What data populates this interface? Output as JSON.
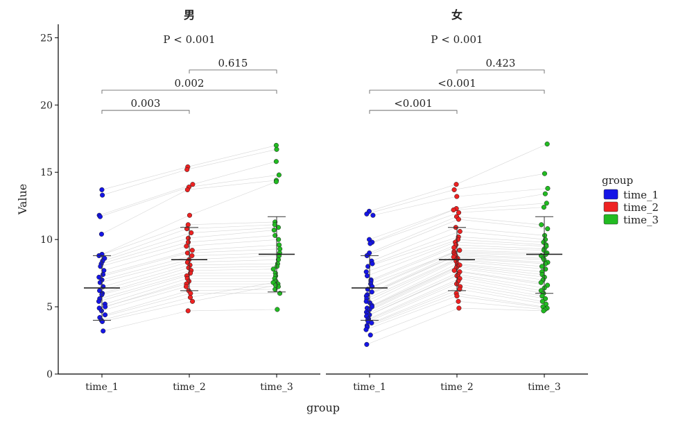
{
  "chart_data": {
    "type": "scatter",
    "subtype": "paired dot plot with mean ± sd, faceted",
    "xlabel": "group",
    "ylabel": "Value",
    "ylim": [
      0,
      26
    ],
    "yticks": [
      0,
      5,
      10,
      15,
      20,
      25
    ],
    "categories": [
      "time_1",
      "time_2",
      "time_3"
    ],
    "legend": {
      "title": "group",
      "position": "right",
      "entries": [
        {
          "label": "time_1",
          "color": "#1515e6"
        },
        {
          "label": "time_2",
          "color": "#ee2222"
        },
        {
          "label": "time_3",
          "color": "#22bb22"
        }
      ]
    },
    "facets": [
      {
        "title": "男",
        "overall_p": "P < 0.001",
        "comparisons": [
          {
            "from": "time_1",
            "to": "time_2",
            "label": "0.003",
            "y": 19.6
          },
          {
            "from": "time_1",
            "to": "time_3",
            "label": "0.002",
            "y": 21.1
          },
          {
            "from": "time_2",
            "to": "time_3",
            "label": "0.615",
            "y": 22.6
          }
        ],
        "summary": [
          {
            "group": "time_1",
            "mean": 6.4,
            "sd_low": 4.0,
            "sd_high": 8.8
          },
          {
            "group": "time_2",
            "mean": 8.5,
            "sd_low": 6.2,
            "sd_high": 10.9
          },
          {
            "group": "time_3",
            "mean": 8.9,
            "sd_low": 6.1,
            "sd_high": 11.7
          }
        ],
        "series": [
          {
            "name": "time_1",
            "values": [
              13.7,
              13.3,
              11.8,
              11.7,
              10.4,
              8.9,
              8.8,
              8.6,
              8.4,
              8.2,
              8.0,
              7.7,
              7.4,
              7.2,
              7.0,
              6.8,
              6.5,
              6.2,
              6.0,
              5.9,
              5.6,
              5.4,
              5.2,
              5.0,
              4.9,
              4.7,
              4.4,
              4.2,
              4.0,
              3.9,
              3.2
            ]
          },
          {
            "name": "time_2",
            "values": [
              15.4,
              15.2,
              14.1,
              13.9,
              13.7,
              11.8,
              11.1,
              10.8,
              10.5,
              10.1,
              9.8,
              9.5,
              9.2,
              9.0,
              8.8,
              8.5,
              8.3,
              8.1,
              7.9,
              7.7,
              7.5,
              7.3,
              7.1,
              6.9,
              6.7,
              6.5,
              6.2,
              6.0,
              5.7,
              5.4,
              4.7
            ]
          },
          {
            "name": "time_3",
            "values": [
              17.0,
              16.7,
              15.8,
              14.8,
              14.4,
              14.3,
              11.3,
              11.1,
              10.9,
              10.7,
              10.3,
              10.0,
              9.6,
              9.3,
              9.0,
              8.8,
              8.5,
              8.2,
              8.0,
              7.8,
              7.5,
              7.3,
              7.1,
              6.9,
              6.7,
              6.5,
              6.3,
              6.0,
              6.8,
              6.6,
              4.8
            ]
          }
        ]
      },
      {
        "title": "女",
        "overall_p": "P < 0.001",
        "comparisons": [
          {
            "from": "time_1",
            "to": "time_2",
            "label": "<0.001",
            "y": 19.6
          },
          {
            "from": "time_1",
            "to": "time_3",
            "label": "<0.001",
            "y": 21.1
          },
          {
            "from": "time_2",
            "to": "time_3",
            "label": "0.423",
            "y": 22.6
          }
        ],
        "summary": [
          {
            "group": "time_1",
            "mean": 6.4,
            "sd_low": 4.0,
            "sd_high": 8.8
          },
          {
            "group": "time_2",
            "mean": 8.5,
            "sd_low": 6.2,
            "sd_high": 10.9
          },
          {
            "group": "time_3",
            "mean": 8.9,
            "sd_low": 6.0,
            "sd_high": 11.7
          }
        ],
        "series": [
          {
            "name": "time_1",
            "values": [
              12.1,
              11.9,
              11.8,
              10.0,
              9.8,
              9.7,
              9.0,
              8.8,
              8.4,
              8.2,
              8.0,
              7.6,
              7.3,
              7.0,
              6.9,
              6.7,
              6.5,
              6.3,
              6.1,
              5.9,
              5.8,
              5.6,
              5.4,
              5.3,
              5.1,
              5.0,
              4.9,
              4.8,
              4.6,
              4.5,
              4.4,
              4.3,
              4.1,
              4.0,
              3.9,
              3.8,
              3.6,
              3.5,
              3.3,
              2.9,
              2.2
            ]
          },
          {
            "name": "time_2",
            "values": [
              14.1,
              13.7,
              13.2,
              12.3,
              12.2,
              12.0,
              11.7,
              11.5,
              10.9,
              10.6,
              10.2,
              10.0,
              9.8,
              9.6,
              9.4,
              9.2,
              9.1,
              9.0,
              8.9,
              8.8,
              8.7,
              8.6,
              8.5,
              8.4,
              8.2,
              8.1,
              8.0,
              7.9,
              7.7,
              7.6,
              7.4,
              7.3,
              7.1,
              6.9,
              6.7,
              6.5,
              6.3,
              6.0,
              5.8,
              5.4,
              4.9
            ]
          },
          {
            "name": "time_3",
            "values": [
              17.1,
              14.9,
              13.8,
              13.4,
              12.7,
              12.4,
              11.1,
              10.8,
              10.3,
              10.0,
              9.8,
              9.6,
              9.5,
              9.3,
              9.2,
              9.0,
              8.9,
              8.8,
              8.6,
              8.5,
              8.3,
              8.2,
              8.0,
              7.8,
              7.6,
              7.4,
              7.2,
              7.0,
              6.8,
              6.6,
              6.4,
              6.2,
              6.0,
              5.8,
              5.6,
              5.4,
              5.2,
              5.0,
              4.9,
              4.8,
              4.7
            ]
          }
        ]
      }
    ]
  }
}
